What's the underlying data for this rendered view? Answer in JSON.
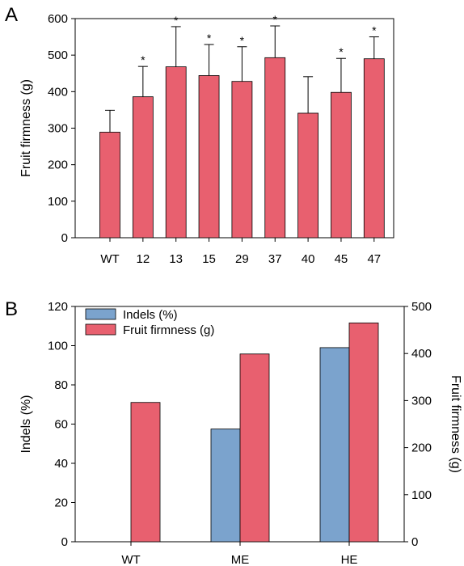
{
  "chart_data": [
    {
      "panel_label": "A",
      "type": "bar",
      "ylabel": "Fruit firmness (g)",
      "xlabel": "",
      "ylim": [
        0,
        600
      ],
      "yticks": [
        0,
        100,
        200,
        300,
        400,
        500,
        600
      ],
      "categories": [
        "WT",
        "12",
        "13",
        "15",
        "29",
        "37",
        "40",
        "45",
        "47"
      ],
      "values": [
        289,
        386,
        468,
        444,
        428,
        493,
        341,
        398,
        490
      ],
      "errors": [
        60,
        83,
        110,
        85,
        95,
        87,
        100,
        93,
        60
      ],
      "significant": [
        false,
        true,
        true,
        true,
        true,
        true,
        false,
        true,
        true
      ],
      "significance_marker": "*",
      "colors": {
        "bar": "#E8606F"
      }
    },
    {
      "panel_label": "B",
      "type": "bar",
      "categories": [
        "WT",
        "ME",
        "HE"
      ],
      "y_left": {
        "label": "Indels (%)",
        "ylim": [
          0,
          120
        ],
        "ticks": [
          0,
          20,
          40,
          60,
          80,
          100,
          120
        ]
      },
      "y_right": {
        "label": "Fruit firmness (g)",
        "ylim": [
          0,
          500
        ],
        "ticks": [
          0,
          100,
          200,
          300,
          400,
          500
        ]
      },
      "series": [
        {
          "name": "Indels (%)",
          "axis": "left",
          "color": "#7BA3CD",
          "values": [
            0,
            57.5,
            99
          ]
        },
        {
          "name": "Fruit firmness (g)",
          "axis": "right",
          "color": "#E8606F",
          "values": [
            296,
            399,
            465
          ]
        }
      ],
      "legend_position": "top-left"
    }
  ]
}
